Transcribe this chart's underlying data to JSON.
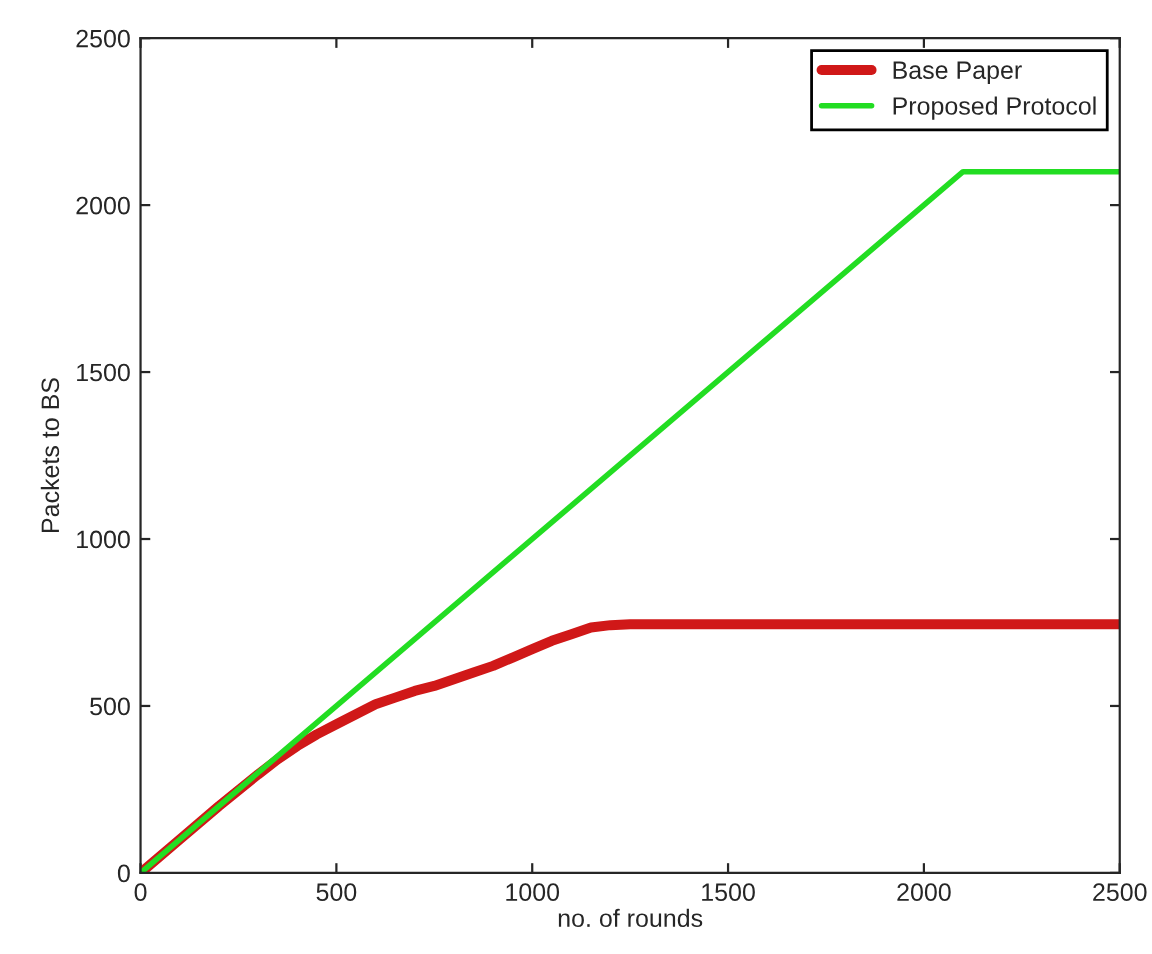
{
  "chart_data": {
    "type": "line",
    "xlabel": "no. of rounds",
    "ylabel": "Packets to BS",
    "xlim": [
      0,
      2500
    ],
    "ylim": [
      0,
      2500
    ],
    "xticks": [
      0,
      500,
      1000,
      1500,
      2000,
      2500
    ],
    "yticks": [
      0,
      500,
      1000,
      1500,
      2000,
      2500
    ],
    "grid": false,
    "legend": "top right",
    "line_style": "solid",
    "marker": "none",
    "series": [
      {
        "name": "Base Paper",
        "color": "#d01818",
        "x": [
          0,
          100,
          200,
          300,
          350,
          400,
          450,
          500,
          550,
          600,
          650,
          700,
          750,
          800,
          850,
          900,
          950,
          1000,
          1050,
          1100,
          1150,
          1200,
          1250,
          2500
        ],
        "values": [
          0,
          100,
          200,
          295,
          340,
          380,
          415,
          445,
          475,
          505,
          525,
          545,
          560,
          580,
          600,
          620,
          645,
          670,
          695,
          715,
          735,
          742,
          745,
          745
        ]
      },
      {
        "name": "Proposed Protocol",
        "color": "#22dd22",
        "x": [
          0,
          2100,
          2500
        ],
        "values": [
          0,
          2100,
          2100
        ]
      }
    ]
  }
}
